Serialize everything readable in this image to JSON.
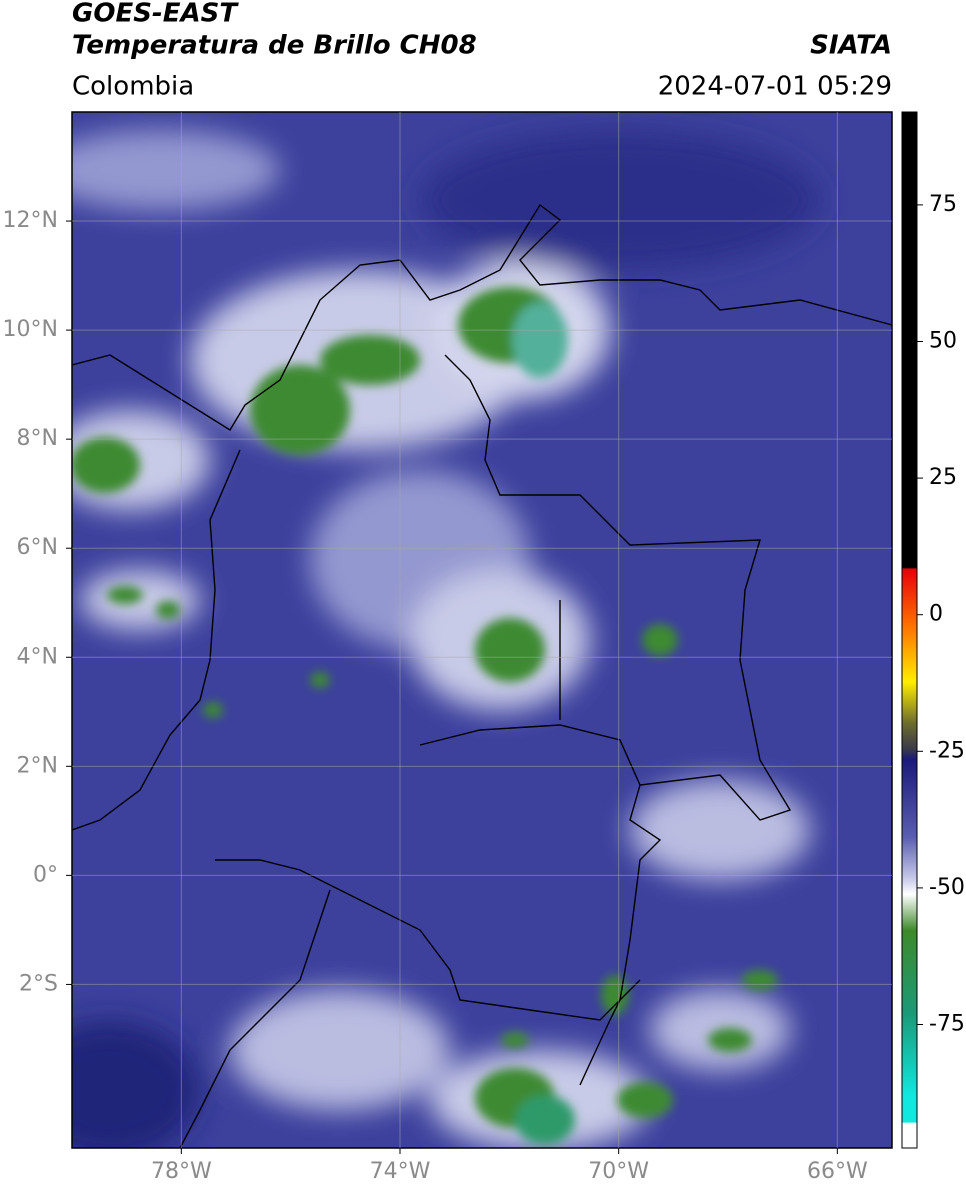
{
  "header": {
    "satellite": "GOES-EAST",
    "product": "Temperatura de Brillo CH08",
    "region": "Colombia",
    "source": "SIATA",
    "datetime": "2024-07-01 05:29"
  },
  "map": {
    "xlim": [
      -80,
      -65
    ],
    "ylim": [
      -5,
      14
    ],
    "xticks": [
      {
        "value": -78,
        "label": "78°W"
      },
      {
        "value": -74,
        "label": "74°W"
      },
      {
        "value": -70,
        "label": "70°W"
      },
      {
        "value": -66,
        "label": "66°W"
      }
    ],
    "yticks": [
      {
        "value": 12,
        "label": "12°N"
      },
      {
        "value": 10,
        "label": "10°N"
      },
      {
        "value": 8,
        "label": "8°N"
      },
      {
        "value": 6,
        "label": "6°N"
      },
      {
        "value": 4,
        "label": "4°N"
      },
      {
        "value": 2,
        "label": "2°N"
      },
      {
        "value": 0,
        "label": "0°"
      },
      {
        "value": -2,
        "label": "2°S"
      }
    ],
    "grid": true
  },
  "colorbar": {
    "lim": [
      -97.6,
      92
    ],
    "ticks": [
      75,
      50,
      25,
      0,
      -25,
      -50,
      -75
    ]
  }
}
